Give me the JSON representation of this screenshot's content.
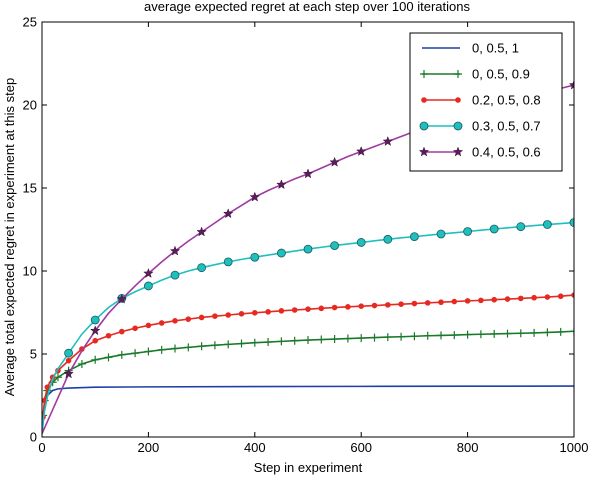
{
  "chart_data": {
    "type": "line",
    "title": "average expected regret at each step over 100 iterations",
    "xlabel": "Step in experiment",
    "ylabel": "Average total expected regret in experiment at this step",
    "xlim": [
      0,
      1000
    ],
    "ylim": [
      0,
      25
    ],
    "xticks": [
      0,
      200,
      400,
      600,
      800,
      1000
    ],
    "yticks": [
      0,
      5,
      10,
      15,
      20,
      25
    ],
    "grid": false,
    "legend_position": "top-right",
    "series": [
      {
        "name": "0, 0.5, 1",
        "color": "#1f3fa8",
        "marker": "none",
        "x": [
          0,
          5,
          10,
          20,
          30,
          50,
          100,
          200,
          400,
          600,
          800,
          1000
        ],
        "y": [
          0.2,
          1.8,
          2.5,
          2.8,
          2.9,
          2.95,
          3.0,
          3.02,
          3.04,
          3.05,
          3.06,
          3.07
        ]
      },
      {
        "name": "0, 0.5, 0.9",
        "color": "#1a7a2a",
        "marker": "plus",
        "x": [
          0,
          2,
          5,
          10,
          20,
          30,
          50,
          75,
          100,
          125,
          150,
          175,
          200,
          225,
          250,
          275,
          300,
          325,
          350,
          375,
          400,
          425,
          450,
          475,
          500,
          525,
          550,
          575,
          600,
          625,
          650,
          675,
          700,
          725,
          750,
          775,
          800,
          825,
          850,
          875,
          900,
          925,
          950,
          975,
          1000
        ],
        "y": [
          0.2,
          1.3,
          2.2,
          2.8,
          3.3,
          3.6,
          4.0,
          4.4,
          4.65,
          4.8,
          4.95,
          5.05,
          5.15,
          5.25,
          5.33,
          5.4,
          5.47,
          5.53,
          5.58,
          5.63,
          5.68,
          5.72,
          5.76,
          5.8,
          5.84,
          5.87,
          5.9,
          5.93,
          5.96,
          5.99,
          6.02,
          6.04,
          6.07,
          6.1,
          6.12,
          6.14,
          6.17,
          6.19,
          6.21,
          6.23,
          6.25,
          6.27,
          6.3,
          6.33,
          6.37
        ]
      },
      {
        "name": "0.2, 0.5, 0.8",
        "color": "#e52a22",
        "marker": "dot",
        "x": [
          0,
          2,
          5,
          10,
          20,
          30,
          50,
          75,
          100,
          125,
          150,
          175,
          200,
          225,
          250,
          275,
          300,
          325,
          350,
          375,
          400,
          425,
          450,
          475,
          500,
          525,
          550,
          575,
          600,
          625,
          650,
          675,
          700,
          725,
          750,
          775,
          800,
          825,
          850,
          875,
          900,
          925,
          950,
          975,
          1000
        ],
        "y": [
          0.2,
          1.2,
          2.2,
          3.0,
          3.6,
          4.0,
          4.6,
          5.3,
          5.8,
          6.1,
          6.35,
          6.55,
          6.72,
          6.87,
          7.0,
          7.1,
          7.2,
          7.28,
          7.35,
          7.42,
          7.48,
          7.54,
          7.6,
          7.65,
          7.7,
          7.75,
          7.8,
          7.84,
          7.88,
          7.92,
          7.96,
          8.0,
          8.04,
          8.08,
          8.12,
          8.16,
          8.2,
          8.23,
          8.27,
          8.31,
          8.35,
          8.39,
          8.43,
          8.48,
          8.55
        ]
      },
      {
        "name": "0.3, 0.5, 0.7",
        "color": "#1fbfbf",
        "marker": "circle",
        "x": [
          0,
          2,
          5,
          10,
          20,
          30,
          50,
          75,
          100,
          125,
          150,
          175,
          200,
          225,
          250,
          275,
          300,
          325,
          350,
          375,
          400,
          425,
          450,
          475,
          500,
          525,
          550,
          575,
          600,
          625,
          650,
          675,
          700,
          725,
          750,
          775,
          800,
          825,
          850,
          875,
          900,
          925,
          950,
          975,
          1000
        ],
        "y": [
          0.2,
          0.9,
          1.6,
          2.4,
          3.5,
          4.1,
          5.05,
          6.2,
          7.05,
          7.8,
          8.35,
          8.75,
          9.1,
          9.45,
          9.75,
          10.0,
          10.2,
          10.38,
          10.55,
          10.7,
          10.83,
          10.96,
          11.08,
          11.2,
          11.32,
          11.43,
          11.53,
          11.63,
          11.72,
          11.82,
          11.91,
          12.0,
          12.07,
          12.15,
          12.23,
          12.3,
          12.38,
          12.46,
          12.53,
          12.6,
          12.67,
          12.74,
          12.8,
          12.86,
          12.92
        ]
      },
      {
        "name": "0.4, 0.5, 0.6",
        "color": "#a03aa0",
        "marker": "star",
        "x": [
          0,
          25,
          50,
          75,
          100,
          125,
          150,
          175,
          200,
          225,
          250,
          275,
          300,
          325,
          350,
          375,
          400,
          425,
          450,
          475,
          500,
          525,
          550,
          575,
          600,
          625,
          650,
          675,
          700,
          725,
          750,
          775,
          800,
          825,
          850,
          875,
          900,
          925,
          950,
          975,
          1000
        ],
        "y": [
          0.2,
          2.0,
          3.8,
          5.2,
          6.4,
          7.45,
          8.3,
          9.1,
          9.85,
          10.55,
          11.2,
          11.8,
          12.35,
          12.9,
          13.45,
          13.95,
          14.45,
          14.85,
          15.2,
          15.55,
          15.85,
          16.2,
          16.55,
          16.9,
          17.2,
          17.5,
          17.8,
          18.1,
          18.4,
          18.65,
          18.9,
          19.15,
          19.4,
          19.65,
          19.9,
          20.15,
          20.4,
          20.6,
          20.8,
          21.0,
          21.2
        ]
      }
    ]
  }
}
